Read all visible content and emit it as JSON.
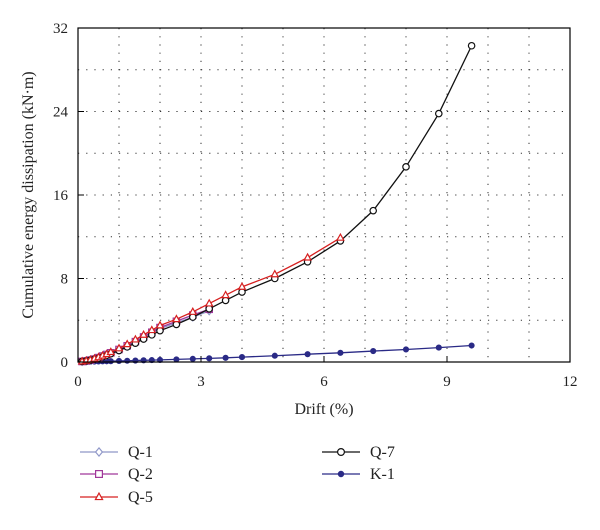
{
  "chart_data": {
    "type": "line",
    "title": "",
    "xlabel": "Drift (%)",
    "ylabel": "Cumulative energy dissipation (kN·m)",
    "xlim": [
      0,
      12
    ],
    "ylim": [
      0,
      32
    ],
    "xticks": [
      0,
      3,
      6,
      9,
      12
    ],
    "yticks": [
      0,
      8,
      16,
      24,
      32
    ],
    "xtick_labels": [
      "0",
      "3",
      "6",
      "9",
      "12"
    ],
    "ytick_labels": [
      "0",
      "8",
      "16",
      "24",
      "32"
    ],
    "grid": "dotted",
    "legend_position": "bottom",
    "series": [
      {
        "name": "Q-1",
        "color": "#8f97c8",
        "marker": "diamond-open",
        "x": [
          0.1,
          0.2,
          0.3,
          0.4,
          0.5,
          0.6,
          0.7,
          0.8,
          1.0,
          1.2,
          1.4,
          1.6,
          1.8,
          2.0,
          2.4,
          2.8,
          3.2
        ],
        "y": [
          0.05,
          0.1,
          0.18,
          0.28,
          0.4,
          0.55,
          0.7,
          0.85,
          1.15,
          1.5,
          1.9,
          2.3,
          2.75,
          3.2,
          3.75,
          4.3,
          4.9
        ]
      },
      {
        "name": "Q-2",
        "color": "#a0379a",
        "marker": "square-open",
        "x": [
          0.1,
          0.2,
          0.3,
          0.4,
          0.5,
          0.6,
          0.7,
          0.8,
          1.0,
          1.2,
          1.4,
          1.6,
          1.8,
          2.0,
          2.4,
          2.8,
          3.2
        ],
        "y": [
          0.05,
          0.1,
          0.18,
          0.28,
          0.42,
          0.57,
          0.72,
          0.88,
          1.2,
          1.55,
          1.95,
          2.4,
          2.85,
          3.3,
          3.9,
          4.5,
          5.05
        ]
      },
      {
        "name": "Q-5",
        "color": "#d62020",
        "marker": "triangle-open",
        "x": [
          0.1,
          0.2,
          0.3,
          0.4,
          0.5,
          0.6,
          0.7,
          0.8,
          1.0,
          1.2,
          1.4,
          1.6,
          1.8,
          2.0,
          2.4,
          2.8,
          3.2,
          3.6,
          4.0,
          4.8,
          5.6,
          6.4
        ],
        "y": [
          0.05,
          0.12,
          0.2,
          0.32,
          0.45,
          0.6,
          0.75,
          0.95,
          1.3,
          1.7,
          2.15,
          2.6,
          3.05,
          3.5,
          4.1,
          4.8,
          5.6,
          6.4,
          7.2,
          8.4,
          10.0,
          11.9
        ]
      },
      {
        "name": "Q-7",
        "color": "#111111",
        "marker": "circle-open",
        "x": [
          0.1,
          0.2,
          0.3,
          0.4,
          0.5,
          0.6,
          0.7,
          0.8,
          1.0,
          1.2,
          1.4,
          1.6,
          1.8,
          2.0,
          2.4,
          2.8,
          3.2,
          3.6,
          4.0,
          4.8,
          5.6,
          6.4,
          7.2,
          8.0,
          8.8,
          9.6
        ],
        "y": [
          0.05,
          0.1,
          0.17,
          0.26,
          0.37,
          0.5,
          0.64,
          0.8,
          1.1,
          1.45,
          1.8,
          2.2,
          2.6,
          3.0,
          3.6,
          4.3,
          5.1,
          5.9,
          6.7,
          8.0,
          9.6,
          11.6,
          14.5,
          18.7,
          23.8,
          30.3
        ]
      },
      {
        "name": "K-1",
        "color": "#2a2a86",
        "marker": "circle-filled",
        "x": [
          0.1,
          0.2,
          0.3,
          0.4,
          0.5,
          0.6,
          0.7,
          0.8,
          1.0,
          1.2,
          1.4,
          1.6,
          1.8,
          2.0,
          2.4,
          2.8,
          3.2,
          3.6,
          4.0,
          4.8,
          5.6,
          6.4,
          7.2,
          8.0,
          8.8,
          9.6
        ],
        "y": [
          0.01,
          0.02,
          0.03,
          0.04,
          0.05,
          0.06,
          0.07,
          0.08,
          0.1,
          0.12,
          0.14,
          0.16,
          0.18,
          0.2,
          0.25,
          0.3,
          0.35,
          0.4,
          0.47,
          0.6,
          0.75,
          0.88,
          1.05,
          1.2,
          1.38,
          1.58
        ]
      }
    ]
  }
}
